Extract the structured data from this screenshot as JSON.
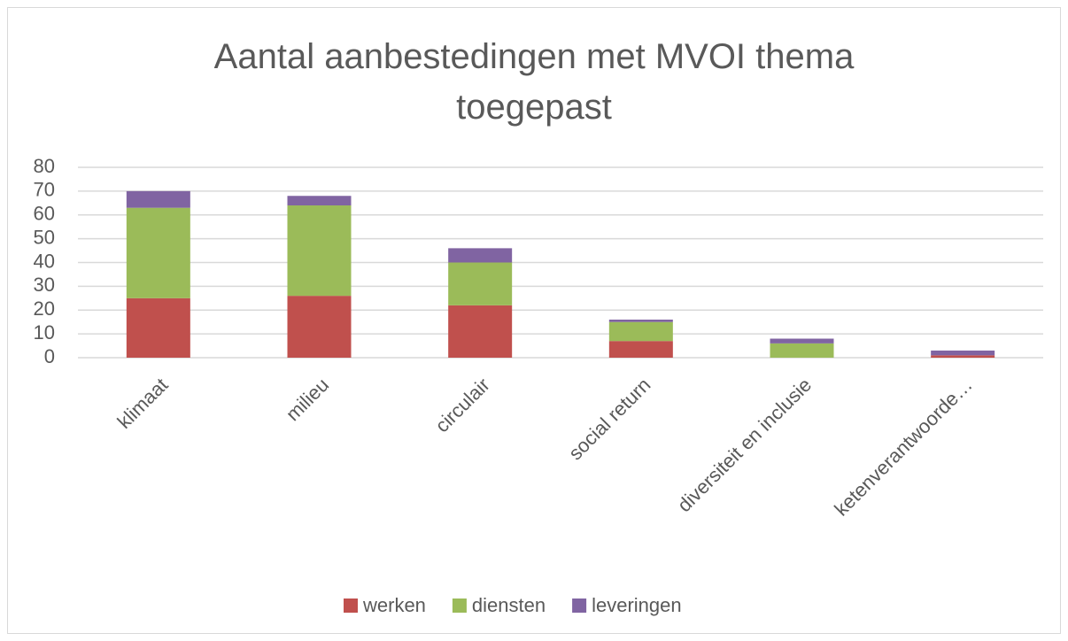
{
  "chart_data": {
    "type": "stacked_bar",
    "title": "Aantal aanbestedingen met MVOI thema toegepast",
    "categories": [
      "klimaat",
      "milieu",
      "circulair",
      "social return",
      "diversiteit en inclusie",
      "ketenverantwoorde…"
    ],
    "series": [
      {
        "name": "werken",
        "color": "#c0504d",
        "values": [
          25,
          26,
          22,
          7,
          0,
          1
        ]
      },
      {
        "name": "diensten",
        "color": "#9bbb59",
        "values": [
          38,
          38,
          18,
          8,
          6,
          0
        ]
      },
      {
        "name": "leveringen",
        "color": "#8064a2",
        "values": [
          7,
          4,
          6,
          1,
          2,
          2
        ]
      }
    ],
    "ylim": [
      0,
      80
    ],
    "yticks": [
      0,
      10,
      20,
      30,
      40,
      50,
      60,
      70,
      80
    ],
    "grid": true,
    "legend": "bottom"
  }
}
